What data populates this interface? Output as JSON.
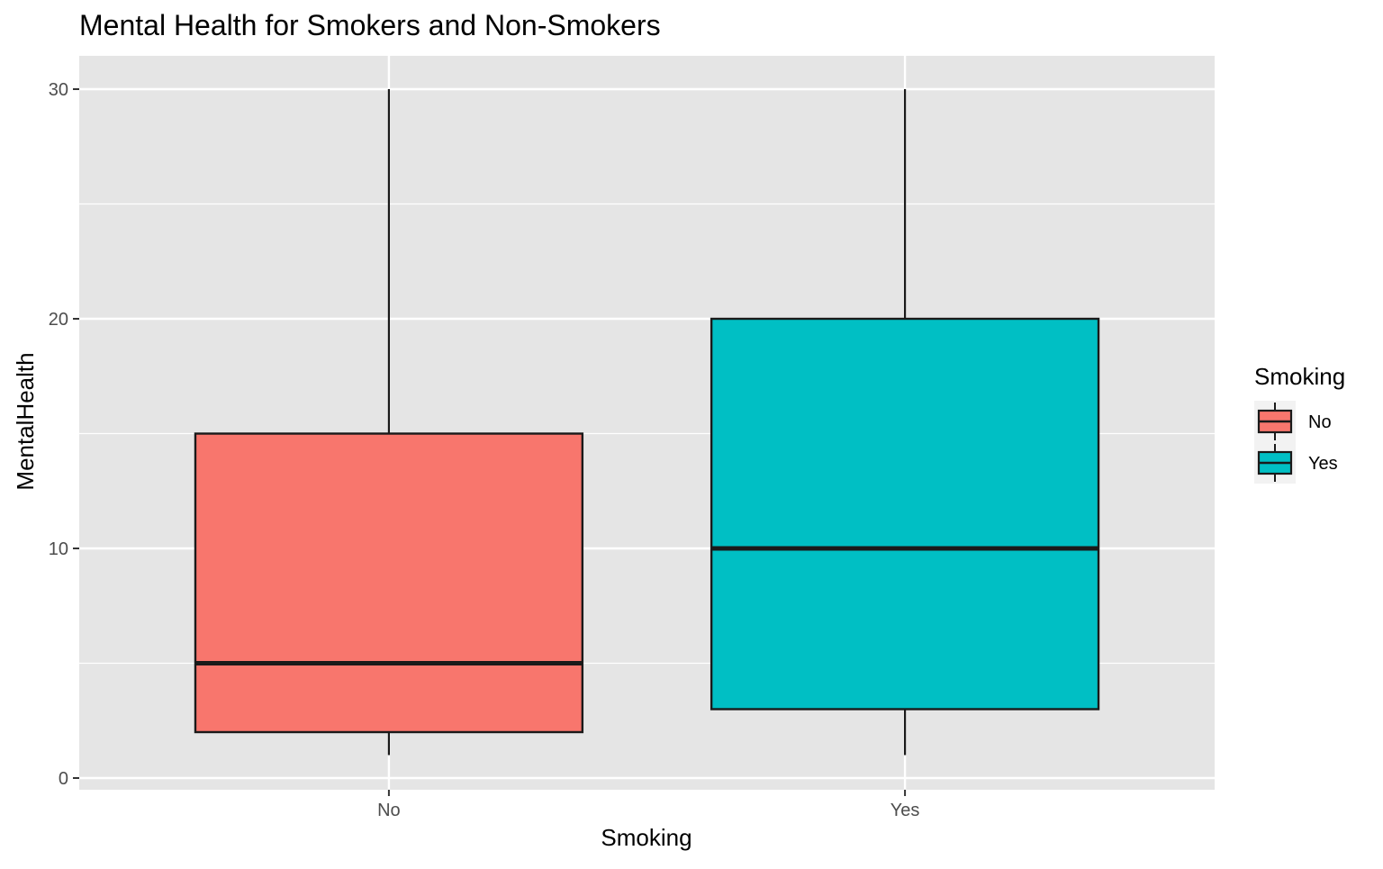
{
  "chart_data": {
    "type": "boxplot",
    "title": "Mental Health for Smokers and Non-Smokers",
    "xlabel": "Smoking",
    "ylabel": "MentalHealth",
    "ylim": [
      -0.5,
      30.7
    ],
    "y_ticks": [
      0,
      10,
      20,
      30
    ],
    "y_minor_ticks": [
      5,
      15,
      25
    ],
    "grid": true,
    "categories": [
      "No",
      "Yes"
    ],
    "boxes": [
      {
        "category": "No",
        "whisker_low": 1,
        "q1": 2,
        "median": 5,
        "q3": 15,
        "whisker_high": 30,
        "color": "#F8766D"
      },
      {
        "category": "Yes",
        "whisker_low": 1,
        "q1": 3,
        "median": 10,
        "q3": 20,
        "whisker_high": 30,
        "color": "#00BFC4"
      }
    ],
    "legend": {
      "title": "Smoking",
      "position": "right",
      "items": [
        {
          "label": "No",
          "color": "#F8766D"
        },
        {
          "label": "Yes",
          "color": "#00BFC4"
        }
      ]
    },
    "panel_background": "#E5E5E5",
    "grid_color": "#FFFFFF",
    "outline_color": "#1A1A1A"
  }
}
